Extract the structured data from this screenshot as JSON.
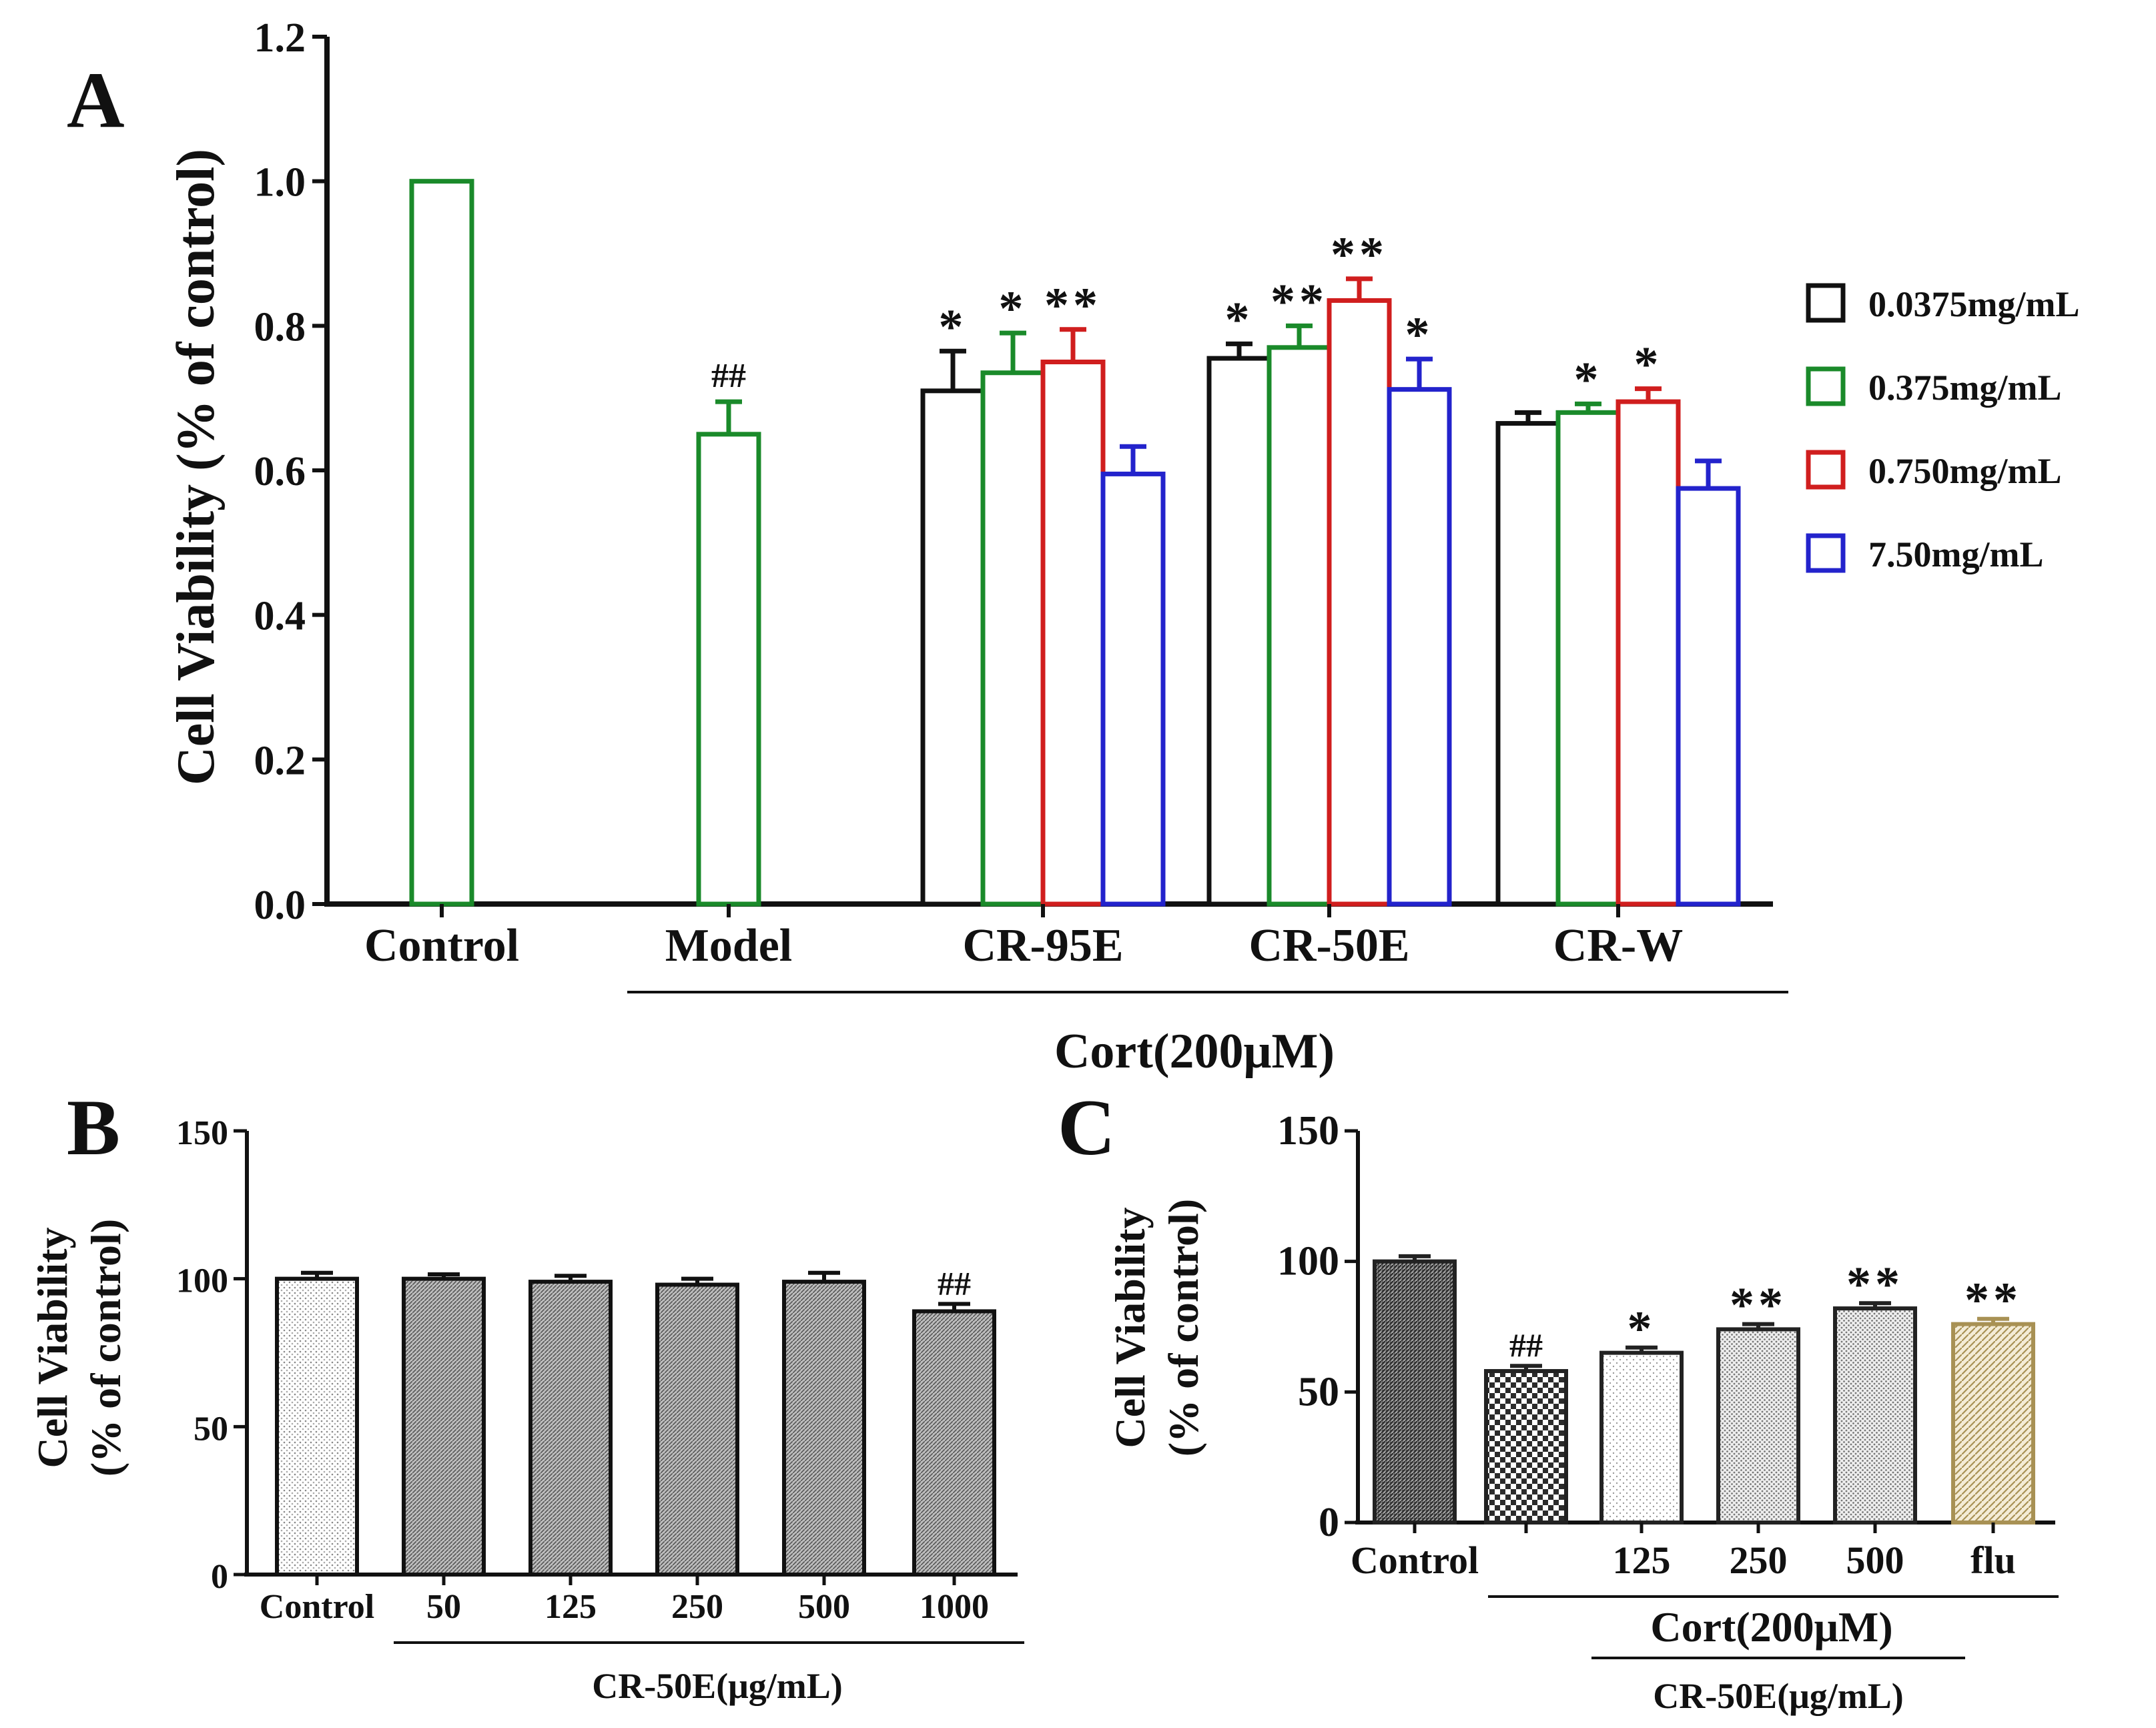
{
  "chart_data": [
    {
      "panel": "A",
      "type": "bar",
      "ylabel": "Cell Viability (% of control)",
      "ylim": [
        0,
        1.2
      ],
      "yticks": [
        "0.0",
        "0.2",
        "0.4",
        "0.6",
        "0.8",
        "1.0",
        "1.2"
      ],
      "ytick_values": [
        0,
        0.2,
        0.4,
        0.6,
        0.8,
        1.0,
        1.2
      ],
      "categories": [
        "Control",
        "Model",
        "CR-95E",
        "CR-50E",
        "CR-W"
      ],
      "bracket_label": "Cort(200μM)",
      "legend_position": "right",
      "series": [
        {
          "name": "0.0375mg/mL",
          "color": "#111111",
          "values": [
            null,
            null,
            0.71,
            0.755,
            0.665
          ],
          "errors": [
            null,
            null,
            0.055,
            0.02,
            0.015
          ],
          "marks": [
            null,
            null,
            "*",
            "*",
            ""
          ]
        },
        {
          "name": "0.375mg/mL",
          "color": "#1a8a2a",
          "values": [
            1.0,
            0.65,
            0.735,
            0.77,
            0.68
          ],
          "errors": [
            0,
            0.045,
            0.055,
            0.03,
            0.012
          ],
          "marks": [
            "",
            "##",
            "*",
            "**",
            "*"
          ]
        },
        {
          "name": "0.750mg/mL",
          "color": "#d01e1e",
          "values": [
            null,
            null,
            0.75,
            0.835,
            0.695
          ],
          "errors": [
            null,
            null,
            0.045,
            0.03,
            0.018
          ],
          "marks": [
            null,
            null,
            "**",
            "**",
            "*"
          ]
        },
        {
          "name": "7.50mg/mL",
          "color": "#2323cc",
          "values": [
            null,
            null,
            0.595,
            0.712,
            0.575
          ],
          "errors": [
            null,
            null,
            0.038,
            0.042,
            0.038
          ],
          "marks": [
            null,
            null,
            "",
            "*",
            ""
          ]
        }
      ]
    },
    {
      "panel": "B",
      "type": "bar",
      "ylabel_line1": "Cell Viability",
      "ylabel_line2": "(% of control)",
      "ylim": [
        0,
        150
      ],
      "yticks": [
        "0",
        "50",
        "100",
        "150"
      ],
      "ytick_values": [
        0,
        50,
        100,
        150
      ],
      "categories": [
        "Control",
        "50",
        "125",
        "250",
        "500",
        "1000"
      ],
      "values": [
        100,
        100,
        99,
        98,
        99,
        89
      ],
      "errors": [
        2,
        1.5,
        2,
        2,
        3,
        2.5
      ],
      "marks": [
        "",
        "",
        "",
        "",
        "",
        "##"
      ],
      "bracket_label": "CR-50E(μg/mL)"
    },
    {
      "panel": "C",
      "type": "bar",
      "ylabel_line1": "Cell Viability",
      "ylabel_line2": "(% of control)",
      "ylim": [
        0,
        150
      ],
      "yticks": [
        "0",
        "50",
        "100",
        "150"
      ],
      "ytick_values": [
        0,
        50,
        100,
        150
      ],
      "categories": [
        "Control",
        "",
        "125",
        "250",
        "500",
        "flu"
      ],
      "values": [
        100,
        58,
        65,
        74,
        82,
        76
      ],
      "errors": [
        2,
        2,
        2,
        2,
        2,
        2
      ],
      "marks": [
        "",
        "##",
        "*",
        "**",
        "**",
        "**"
      ],
      "bar_colors": [
        "#222222",
        "#222222",
        "#222222",
        "#222222",
        "#222222",
        "#a89154"
      ],
      "bracket_label": "Cort(200μM)",
      "bracket_label2": "CR-50E(μg/mL)"
    }
  ]
}
